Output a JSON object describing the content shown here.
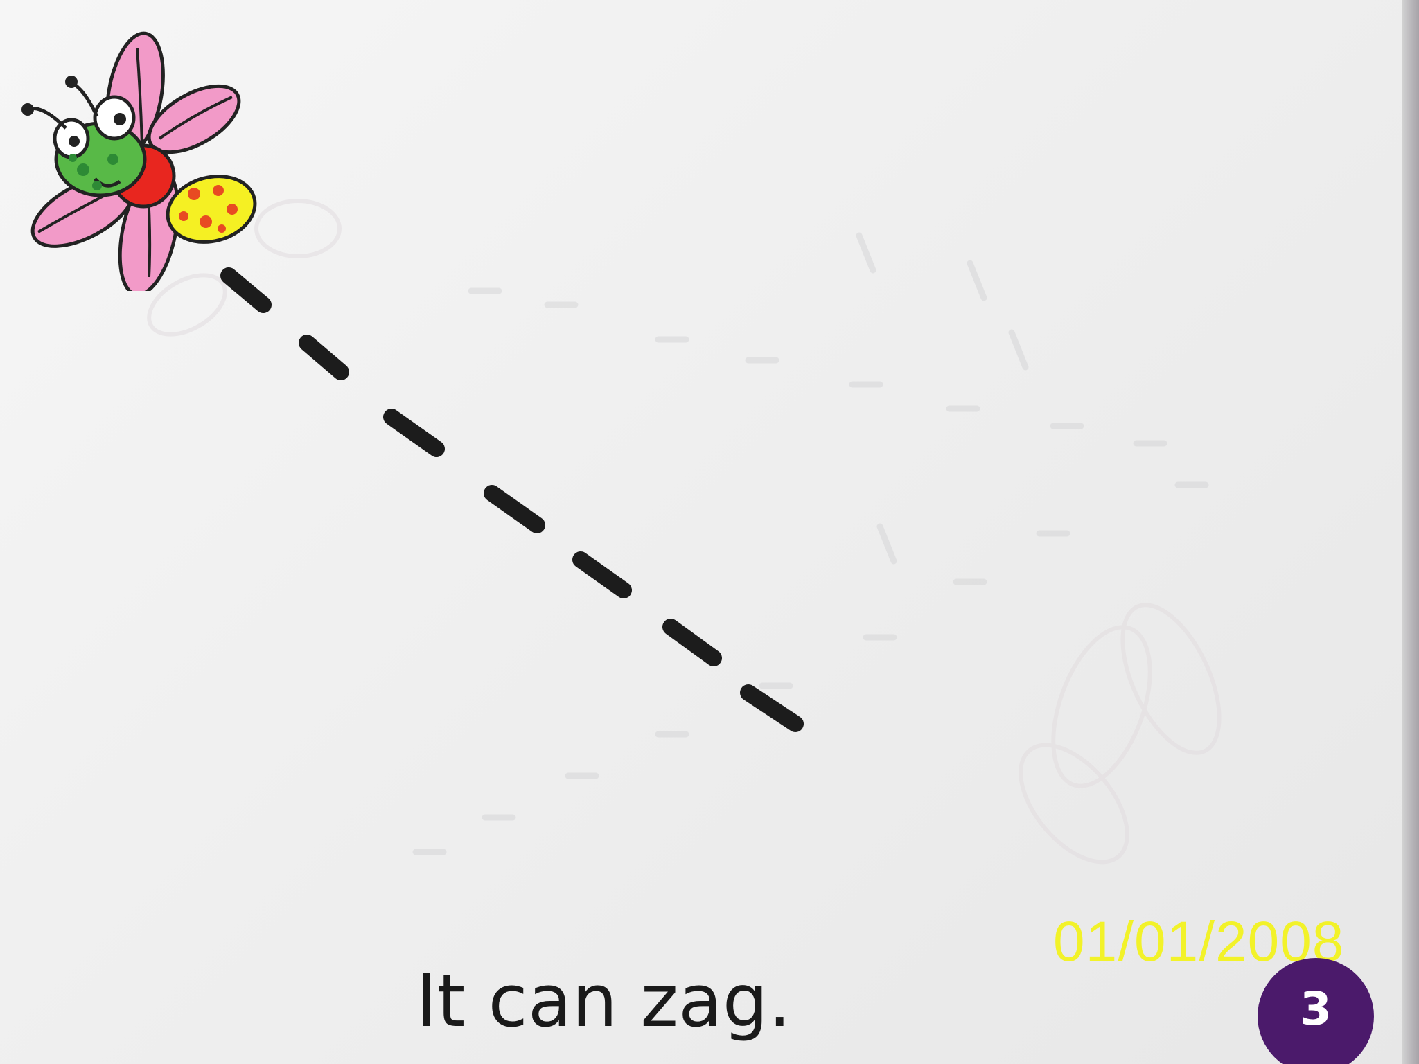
{
  "page": {
    "sentence": "It can zag.",
    "page_number": "3"
  },
  "photo_overlay": {
    "date_stamp": "01/01/2008"
  },
  "illustration": {
    "subject": "bug-icon",
    "path": "dashed-flight-path",
    "colors": {
      "wing": "#f29ac8",
      "head": "#58b947",
      "body": "#e8261f",
      "tail": "#f5f023",
      "dots": "#e84b22",
      "badge": "#4b1a6b",
      "stamp": "#f2f229"
    }
  }
}
